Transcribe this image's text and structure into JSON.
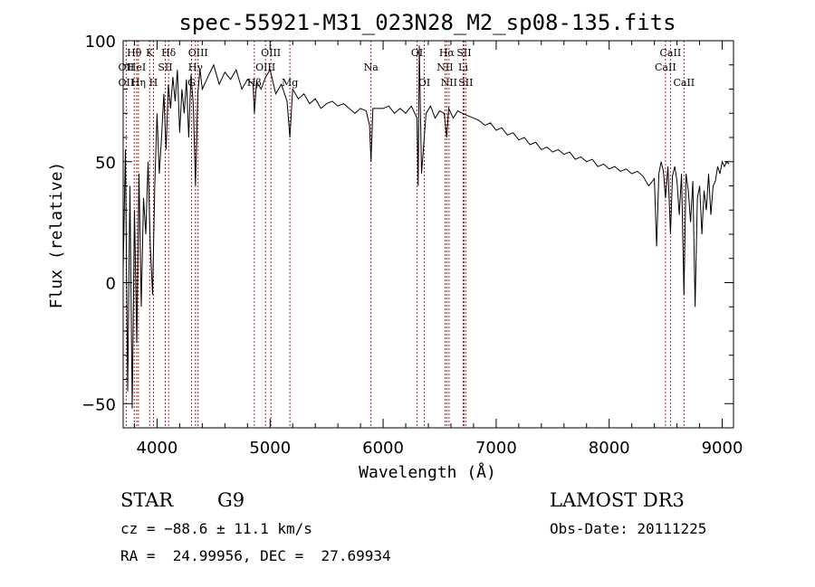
{
  "chart_data": {
    "type": "line",
    "title": "spec-55921-M31_023N28_M2_sp08-135.fits",
    "xlabel": "Wavelength (Å)",
    "ylabel": "Flux (relative)",
    "xlim": [
      3700,
      9100
    ],
    "ylim": [
      -60,
      100
    ],
    "xticks": [
      4000,
      5000,
      6000,
      7000,
      8000,
      9000
    ],
    "yticks": [
      -50,
      0,
      50,
      100
    ],
    "grid": false,
    "series": [
      {
        "name": "flux",
        "color": "#000000",
        "x": [
          3700,
          3720,
          3740,
          3760,
          3780,
          3800,
          3820,
          3840,
          3860,
          3880,
          3900,
          3920,
          3940,
          3960,
          3980,
          4000,
          4020,
          4040,
          4060,
          4080,
          4100,
          4120,
          4140,
          4160,
          4180,
          4200,
          4220,
          4240,
          4260,
          4280,
          4300,
          4320,
          4340,
          4360,
          4380,
          4400,
          4450,
          4500,
          4550,
          4600,
          4650,
          4700,
          4750,
          4800,
          4850,
          4861,
          4880,
          4920,
          4960,
          5000,
          5050,
          5100,
          5150,
          5175,
          5200,
          5250,
          5300,
          5350,
          5400,
          5450,
          5500,
          5550,
          5600,
          5650,
          5700,
          5750,
          5800,
          5850,
          5880,
          5893,
          5910,
          5950,
          6000,
          6050,
          6100,
          6150,
          6200,
          6250,
          6300,
          6310,
          6320,
          6340,
          6380,
          6420,
          6460,
          6500,
          6540,
          6563,
          6580,
          6620,
          6660,
          6700,
          6750,
          6800,
          6850,
          6900,
          6950,
          7000,
          7050,
          7100,
          7150,
          7200,
          7250,
          7300,
          7350,
          7400,
          7450,
          7500,
          7550,
          7600,
          7650,
          7700,
          7750,
          7800,
          7850,
          7900,
          7950,
          8000,
          8050,
          8100,
          8150,
          8200,
          8250,
          8300,
          8350,
          8400,
          8420,
          8440,
          8460,
          8480,
          8498,
          8520,
          8542,
          8560,
          8580,
          8600,
          8620,
          8640,
          8662,
          8680,
          8700,
          8720,
          8740,
          8760,
          8780,
          8800,
          8820,
          8840,
          8860,
          8880,
          8900,
          8920,
          8940,
          8960,
          8980,
          9000,
          9020,
          9040,
          9060
        ],
        "values": [
          5,
          55,
          -45,
          40,
          -52,
          30,
          -25,
          45,
          -10,
          35,
          20,
          50,
          15,
          -5,
          40,
          70,
          45,
          60,
          78,
          55,
          82,
          72,
          85,
          75,
          88,
          62,
          80,
          70,
          84,
          60,
          86,
          74,
          40,
          78,
          88,
          80,
          85,
          90,
          82,
          87,
          84,
          88,
          80,
          84,
          82,
          70,
          83,
          80,
          85,
          88,
          78,
          82,
          75,
          60,
          80,
          76,
          78,
          74,
          76,
          72,
          74,
          75,
          73,
          74,
          72,
          70,
          72,
          71,
          65,
          50,
          72,
          72,
          72,
          73,
          70,
          72,
          70,
          73,
          68,
          40,
          98,
          45,
          70,
          73,
          68,
          71,
          70,
          60,
          72,
          68,
          71,
          70,
          69,
          68,
          67,
          65,
          66,
          63,
          64,
          61,
          62,
          59,
          60,
          57,
          58,
          55,
          56,
          54,
          55,
          53,
          54,
          51,
          52,
          50,
          51,
          48,
          49,
          47,
          48,
          46,
          47,
          45,
          46,
          44,
          40,
          43,
          15,
          45,
          50,
          46,
          35,
          48,
          20,
          44,
          48,
          42,
          28,
          45,
          -5,
          45,
          38,
          25,
          42,
          -10,
          35,
          40,
          20,
          38,
          30,
          45,
          28,
          40,
          42,
          48,
          45,
          50,
          48,
          50,
          49
        ]
      }
    ],
    "lines": [
      {
        "label": "Hθ",
        "wavelength": 3798,
        "row": 1
      },
      {
        "label": "K",
        "wavelength": 3934,
        "row": 1
      },
      {
        "label": "Hδ",
        "wavelength": 4102,
        "row": 1
      },
      {
        "label": "OII",
        "wavelength": 3727,
        "row": 2
      },
      {
        "label": "HeI",
        "wavelength": 3820,
        "row": 2
      },
      {
        "label": "SII",
        "wavelength": 4072,
        "row": 2
      },
      {
        "label": "OII",
        "wavelength": 3727,
        "row": 3
      },
      {
        "label": "Hη",
        "wavelength": 3835,
        "row": 3
      },
      {
        "label": "H",
        "wavelength": 3968,
        "row": 3
      },
      {
        "label": "OIII",
        "wavelength": 4363,
        "row": 1
      },
      {
        "label": "Hγ",
        "wavelength": 4340,
        "row": 2
      },
      {
        "label": "G",
        "wavelength": 4305,
        "row": 3
      },
      {
        "label": "OIII",
        "wavelength": 5007,
        "row": 1
      },
      {
        "label": "OIII",
        "wavelength": 4959,
        "row": 2
      },
      {
        "label": "Hβ",
        "wavelength": 4861,
        "row": 3
      },
      {
        "label": "Mg",
        "wavelength": 5175,
        "row": 3
      },
      {
        "label": "Na",
        "wavelength": 5893,
        "row": 2
      },
      {
        "label": "OI",
        "wavelength": 6300,
        "row": 1
      },
      {
        "label": "OI",
        "wavelength": 6364,
        "row": 3
      },
      {
        "label": "Hα",
        "wavelength": 6563,
        "row": 1
      },
      {
        "label": "SII",
        "wavelength": 6716,
        "row": 1
      },
      {
        "label": "NII",
        "wavelength": 6548,
        "row": 2
      },
      {
        "label": "Li",
        "wavelength": 6708,
        "row": 2
      },
      {
        "label": "NII",
        "wavelength": 6583,
        "row": 3
      },
      {
        "label": "SII",
        "wavelength": 6731,
        "row": 3
      },
      {
        "label": "CaII",
        "wavelength": 8542,
        "row": 1
      },
      {
        "label": "CaII",
        "wavelength": 8498,
        "row": 2
      },
      {
        "label": "CaII",
        "wavelength": 8662,
        "row": 3
      }
    ]
  },
  "footer": {
    "object_class": "STAR",
    "subclass": "G9",
    "survey": "LAMOST DR3",
    "velocity": "cz = −88.6 ± 11.1 km/s",
    "obs_date": "Obs-Date: 20111225",
    "coordinates": "RA =  24.99956, DEC =  27.69934"
  },
  "colors": {
    "line_marker": "#b22222",
    "spectrum": "#000000",
    "axes": "#000000"
  }
}
